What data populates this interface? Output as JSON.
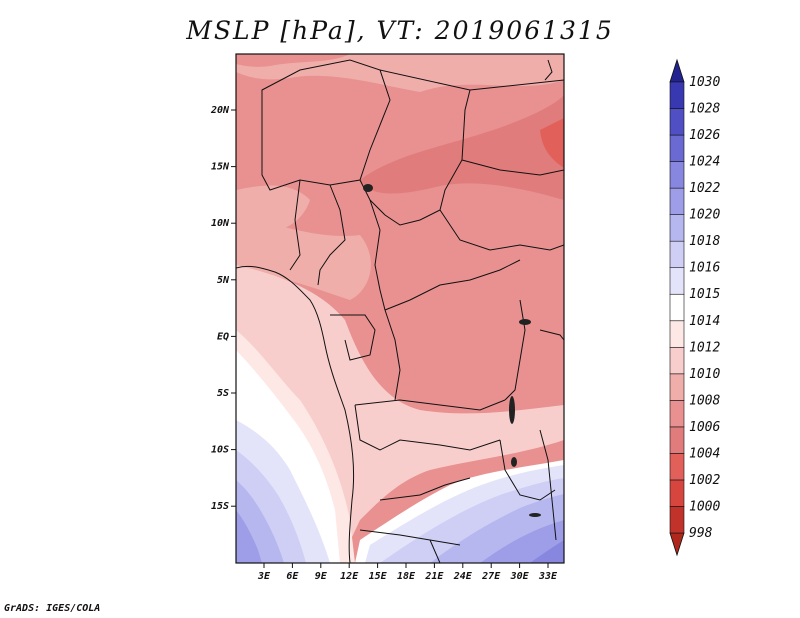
{
  "title": "MSLP [hPa], VT: 2019061315",
  "credit": "GrADS: IGES/COLA",
  "map": {
    "lon_labels": [
      "3E",
      "6E",
      "9E",
      "12E",
      "15E",
      "18E",
      "21E",
      "24E",
      "27E",
      "30E",
      "33E"
    ],
    "lat_labels": [
      "20N",
      "15N",
      "10N",
      "5N",
      "EQ",
      "5S",
      "10S",
      "15S"
    ]
  },
  "colorbar": {
    "levels": [
      "998",
      "1000",
      "1002",
      "1004",
      "1006",
      "1008",
      "1010",
      "1012",
      "1014",
      "1015",
      "1016",
      "1018",
      "1020",
      "1022",
      "1024",
      "1026",
      "1028",
      "1030"
    ],
    "colors": [
      "#b0281c",
      "#c0322a",
      "#d6463f",
      "#e2605a",
      "#e07c7b",
      "#e89190",
      "#f0aeab",
      "#f8cecc",
      "#fde8e6",
      "#ffffff",
      "#e3e3fa",
      "#cfcff5",
      "#b7b7ef",
      "#9e9ee8",
      "#8787df",
      "#6a6ad2",
      "#5050c4",
      "#3838b0",
      "#222290"
    ]
  },
  "colors": {
    "land_warm": "#e89190",
    "sea_cool": "#b7b7ef"
  }
}
